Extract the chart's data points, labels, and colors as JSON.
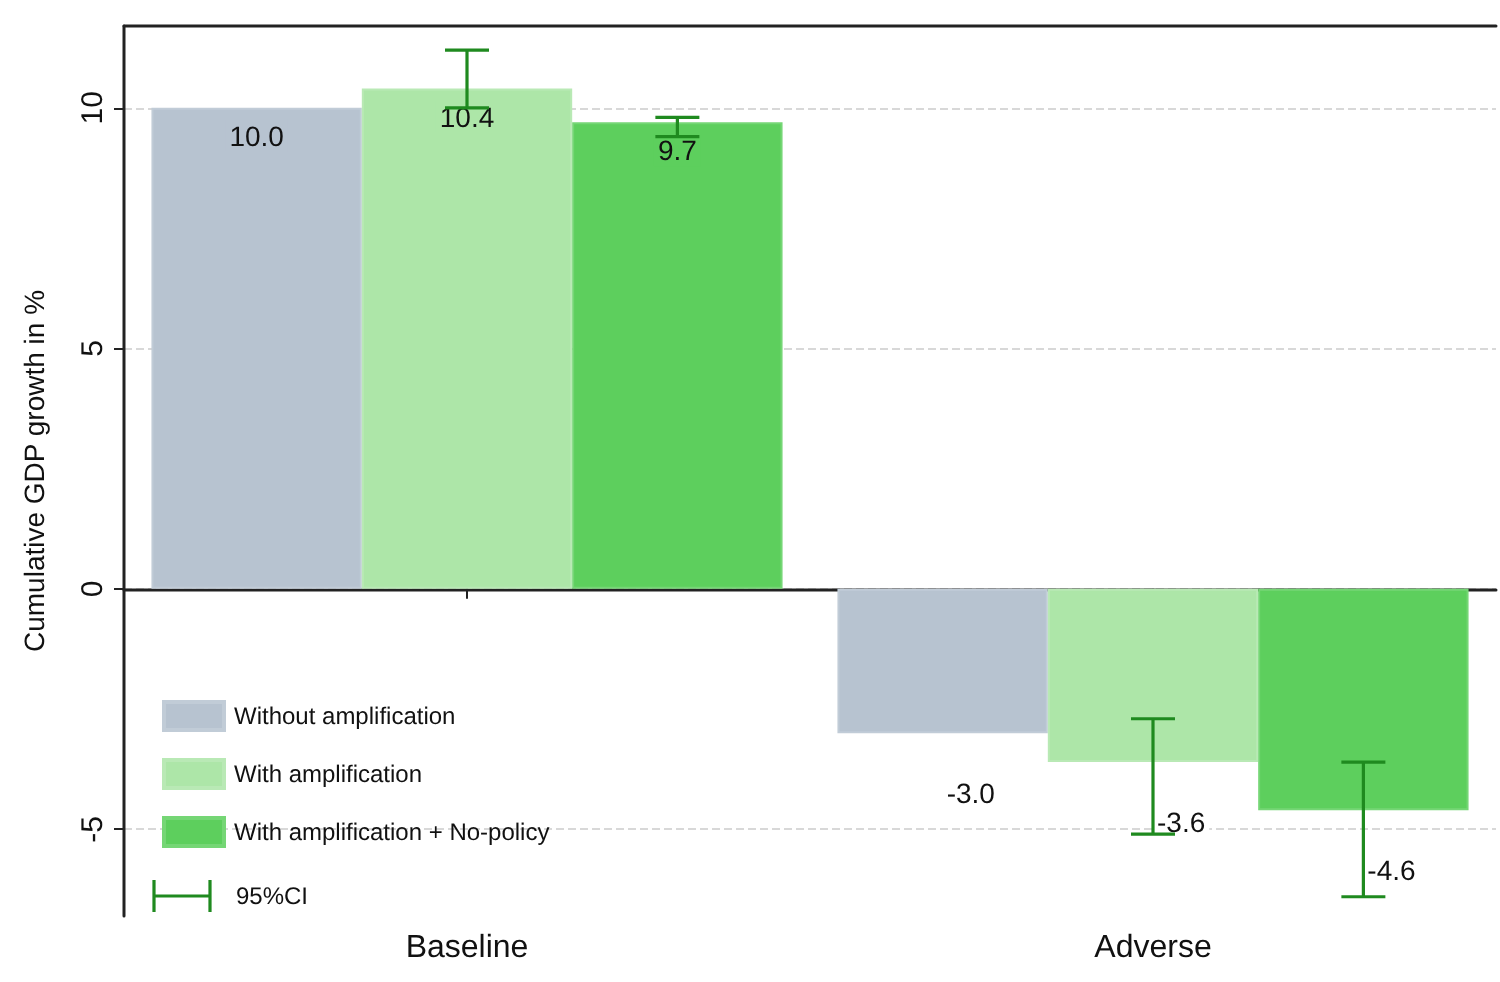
{
  "chart_data": {
    "type": "bar",
    "ylabel": "Cumulative GDP growth in %",
    "categories": [
      "Baseline",
      "Adverse"
    ],
    "series": [
      {
        "name": "Without amplification",
        "color": "#b7c3d0",
        "values": [
          10.0,
          -3.0
        ],
        "value_labels": [
          "10.0",
          "-3.0"
        ]
      },
      {
        "name": "With amplification",
        "color": "#ade6a8",
        "values": [
          10.4,
          -3.6
        ],
        "value_labels": [
          "10.4",
          "-3.6"
        ],
        "errors": [
          [
            10.0,
            11.2
          ],
          [
            -5.1,
            -2.7
          ]
        ]
      },
      {
        "name": "With amplification + No-policy",
        "color": "#5dcf5d",
        "values": [
          9.7,
          -4.6
        ],
        "value_labels": [
          "9.7",
          "-4.6"
        ],
        "errors": [
          [
            9.4,
            9.8
          ],
          [
            -6.4,
            -3.6
          ]
        ]
      }
    ],
    "annotations": [
      "95%CI"
    ],
    "ylim": [
      -6.8,
      11.7
    ],
    "yticks": [
      -5,
      0,
      5,
      10
    ],
    "grid": "y",
    "legend": "bottom left"
  }
}
